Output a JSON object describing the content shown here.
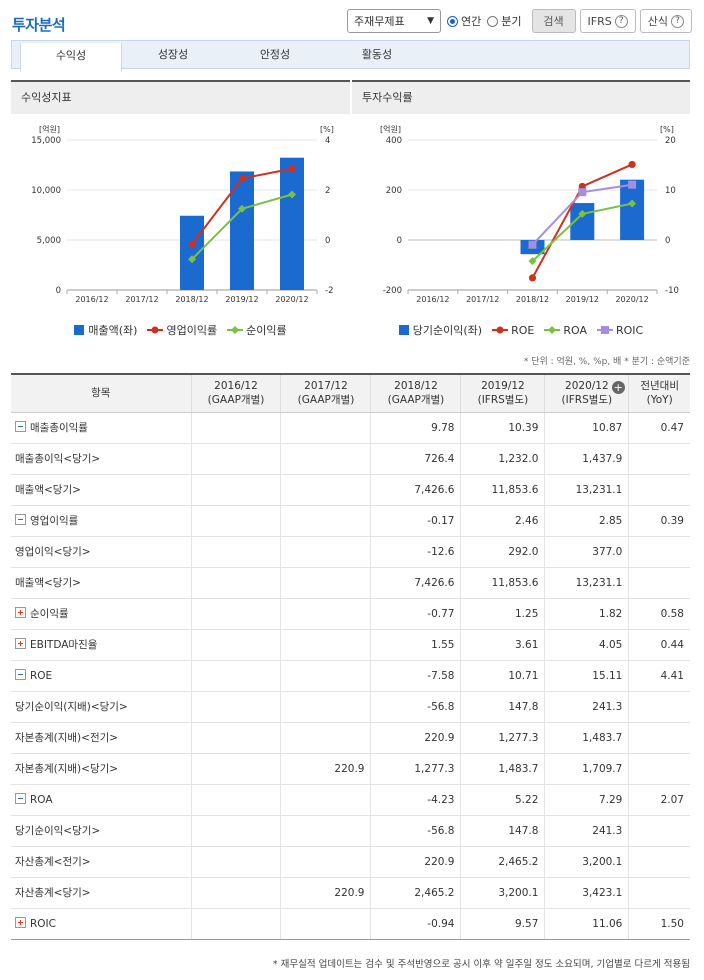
{
  "page": {
    "title": "투자분석"
  },
  "toolbar": {
    "select_value": "주재무제표",
    "radio_annual": "연간",
    "radio_quarter": "분기",
    "search_label": "검색",
    "ifrs_label": "IFRS",
    "formula_label": "산식"
  },
  "tabs": [
    {
      "label": "수익성",
      "active": true
    },
    {
      "label": "성장성",
      "active": false
    },
    {
      "label": "안정성",
      "active": false
    },
    {
      "label": "활동성",
      "active": false
    }
  ],
  "chart_data": [
    {
      "type": "bar",
      "title": "수익성지표",
      "categories": [
        "2016/12",
        "2017/12",
        "2018/12",
        "2019/12",
        "2020/12"
      ],
      "y_left_unit": "[억원]",
      "y_right_unit": "[%]",
      "y_left_ticks": [
        "15,000",
        "10,000",
        "5,000",
        "0"
      ],
      "y_right_ticks": [
        "4",
        "2",
        "0",
        "-2"
      ],
      "ylim_left": [
        0,
        15000
      ],
      "ylim_right": [
        -2,
        4
      ],
      "series": [
        {
          "name": "매출액(좌)",
          "kind": "bar",
          "axis": "left",
          "color": "#1a6ad0",
          "values": [
            null,
            null,
            7426.6,
            11853.6,
            13231.1
          ]
        },
        {
          "name": "영업이익률",
          "kind": "line",
          "axis": "right",
          "color": "#d03020",
          "values": [
            null,
            null,
            -0.17,
            2.46,
            2.85
          ]
        },
        {
          "name": "순이익률",
          "kind": "line",
          "axis": "right",
          "color": "#7ac142",
          "values": [
            null,
            null,
            -0.77,
            1.25,
            1.82
          ]
        }
      ]
    },
    {
      "type": "bar",
      "title": "투자수익률",
      "categories": [
        "2016/12",
        "2017/12",
        "2018/12",
        "2019/12",
        "2020/12"
      ],
      "y_left_unit": "[억원]",
      "y_right_unit": "[%]",
      "y_left_ticks": [
        "400",
        "200",
        "0",
        "-200"
      ],
      "y_right_ticks": [
        "20",
        "10",
        "0",
        "-10"
      ],
      "ylim_left": [
        -200,
        400
      ],
      "ylim_right": [
        -10,
        20
      ],
      "series": [
        {
          "name": "당기순이익(좌)",
          "kind": "bar",
          "axis": "left",
          "color": "#1a6ad0",
          "values": [
            null,
            null,
            -56.8,
            147.8,
            241.3
          ]
        },
        {
          "name": "ROE",
          "kind": "line",
          "axis": "right",
          "color": "#d03020",
          "values": [
            null,
            null,
            -7.58,
            10.71,
            15.11
          ]
        },
        {
          "name": "ROA",
          "kind": "line",
          "axis": "right",
          "color": "#7ac142",
          "values": [
            null,
            null,
            -4.23,
            5.22,
            7.29
          ]
        },
        {
          "name": "ROIC",
          "kind": "line",
          "axis": "right",
          "color": "#a58ee0",
          "values": [
            null,
            null,
            -0.94,
            9.57,
            11.06
          ]
        }
      ]
    }
  ],
  "note": "* 단위 : 억원, %, %p, 배   * 분기 : 순액기준",
  "table": {
    "header_item": "항목",
    "columns": [
      {
        "year": "2016/12",
        "basis": "(GAAP개별)"
      },
      {
        "year": "2017/12",
        "basis": "(GAAP개별)"
      },
      {
        "year": "2018/12",
        "basis": "(GAAP개별)"
      },
      {
        "year": "2019/12",
        "basis": "(IFRS별도)"
      },
      {
        "year": "2020/12",
        "basis": "(IFRS별도)"
      }
    ],
    "yoy_header": "전년대비",
    "yoy_sub": "(YoY)",
    "rows": [
      {
        "label": "매출총이익률",
        "toggle": "minus",
        "values": [
          "",
          "",
          "9.78",
          "10.39",
          "10.87"
        ],
        "yoy": "0.47"
      },
      {
        "label": "매출총이익<당기>",
        "sub": true,
        "values": [
          "",
          "",
          "726.4",
          "1,232.0",
          "1,437.9"
        ],
        "yoy": ""
      },
      {
        "label": "매출액<당기>",
        "sub": true,
        "values": [
          "",
          "",
          "7,426.6",
          "11,853.6",
          "13,231.1"
        ],
        "yoy": ""
      },
      {
        "label": "영업이익률",
        "toggle": "minus",
        "values": [
          "",
          "",
          "-0.17",
          "2.46",
          "2.85"
        ],
        "yoy": "0.39"
      },
      {
        "label": "영업이익<당기>",
        "sub": true,
        "values": [
          "",
          "",
          "-12.6",
          "292.0",
          "377.0"
        ],
        "yoy": ""
      },
      {
        "label": "매출액<당기>",
        "sub": true,
        "values": [
          "",
          "",
          "7,426.6",
          "11,853.6",
          "13,231.1"
        ],
        "yoy": ""
      },
      {
        "label": "순이익률",
        "toggle": "plus",
        "values": [
          "",
          "",
          "-0.77",
          "1.25",
          "1.82"
        ],
        "yoy": "0.58"
      },
      {
        "label": "EBITDA마진율",
        "toggle": "plus",
        "values": [
          "",
          "",
          "1.55",
          "3.61",
          "4.05"
        ],
        "yoy": "0.44"
      },
      {
        "label": "ROE",
        "toggle": "minus",
        "values": [
          "",
          "",
          "-7.58",
          "10.71",
          "15.11"
        ],
        "yoy": "4.41"
      },
      {
        "label": "당기순이익(지배)<당기>",
        "sub": true,
        "values": [
          "",
          "",
          "-56.8",
          "147.8",
          "241.3"
        ],
        "yoy": ""
      },
      {
        "label": "자본총계(지배)<전기>",
        "sub": true,
        "values": [
          "",
          "",
          "220.9",
          "1,277.3",
          "1,483.7"
        ],
        "yoy": ""
      },
      {
        "label": "자본총계(지배)<당기>",
        "sub": true,
        "values": [
          "",
          "220.9",
          "1,277.3",
          "1,483.7",
          "1,709.7"
        ],
        "yoy": ""
      },
      {
        "label": "ROA",
        "toggle": "minus",
        "values": [
          "",
          "",
          "-4.23",
          "5.22",
          "7.29"
        ],
        "yoy": "2.07"
      },
      {
        "label": "당기순이익<당기>",
        "sub": true,
        "values": [
          "",
          "",
          "-56.8",
          "147.8",
          "241.3"
        ],
        "yoy": ""
      },
      {
        "label": "자산총계<전기>",
        "sub": true,
        "values": [
          "",
          "",
          "220.9",
          "2,465.2",
          "3,200.1"
        ],
        "yoy": ""
      },
      {
        "label": "자산총계<당기>",
        "sub": true,
        "values": [
          "",
          "220.9",
          "2,465.2",
          "3,200.1",
          "3,423.1"
        ],
        "yoy": ""
      },
      {
        "label": "ROIC",
        "toggle": "plus",
        "values": [
          "",
          "",
          "-0.94",
          "9.57",
          "11.06"
        ],
        "yoy": "1.50"
      }
    ]
  },
  "footer": "* 재무실적 업데이트는 검수 및 주석반영으로 공시 이후 약 일주일 정도 소요되며, 기업별로 다르게 적용됨"
}
